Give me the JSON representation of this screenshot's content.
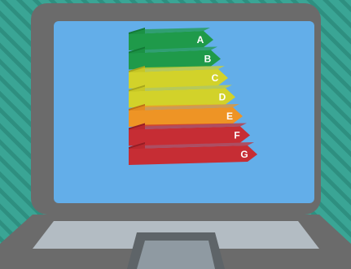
{
  "scene": {
    "background_color": "#3aa595",
    "stripe_color": "#2e8f80",
    "laptop_body_color": "#6b6b6b",
    "laptop_edge_color": "#555555",
    "screen_color": "#63aee9",
    "keyboard_deck_color": "#b3bcc3",
    "touchpad_color": "#8f9aa2"
  },
  "energy_rating": {
    "classes": [
      {
        "label": "A",
        "color": "#1f9a4a",
        "side_color": "#137a36"
      },
      {
        "label": "B",
        "color": "#1f9a4a",
        "side_color": "#137a36"
      },
      {
        "label": "C",
        "color": "#d2d22a",
        "side_color": "#a6a61c"
      },
      {
        "label": "D",
        "color": "#d2d22a",
        "side_color": "#a6a61c"
      },
      {
        "label": "E",
        "color": "#ee9425",
        "side_color": "#bd6f14"
      },
      {
        "label": "F",
        "color": "#c62d34",
        "side_color": "#961d24"
      },
      {
        "label": "G",
        "color": "#c62d34",
        "side_color": "#961d24"
      }
    ]
  }
}
